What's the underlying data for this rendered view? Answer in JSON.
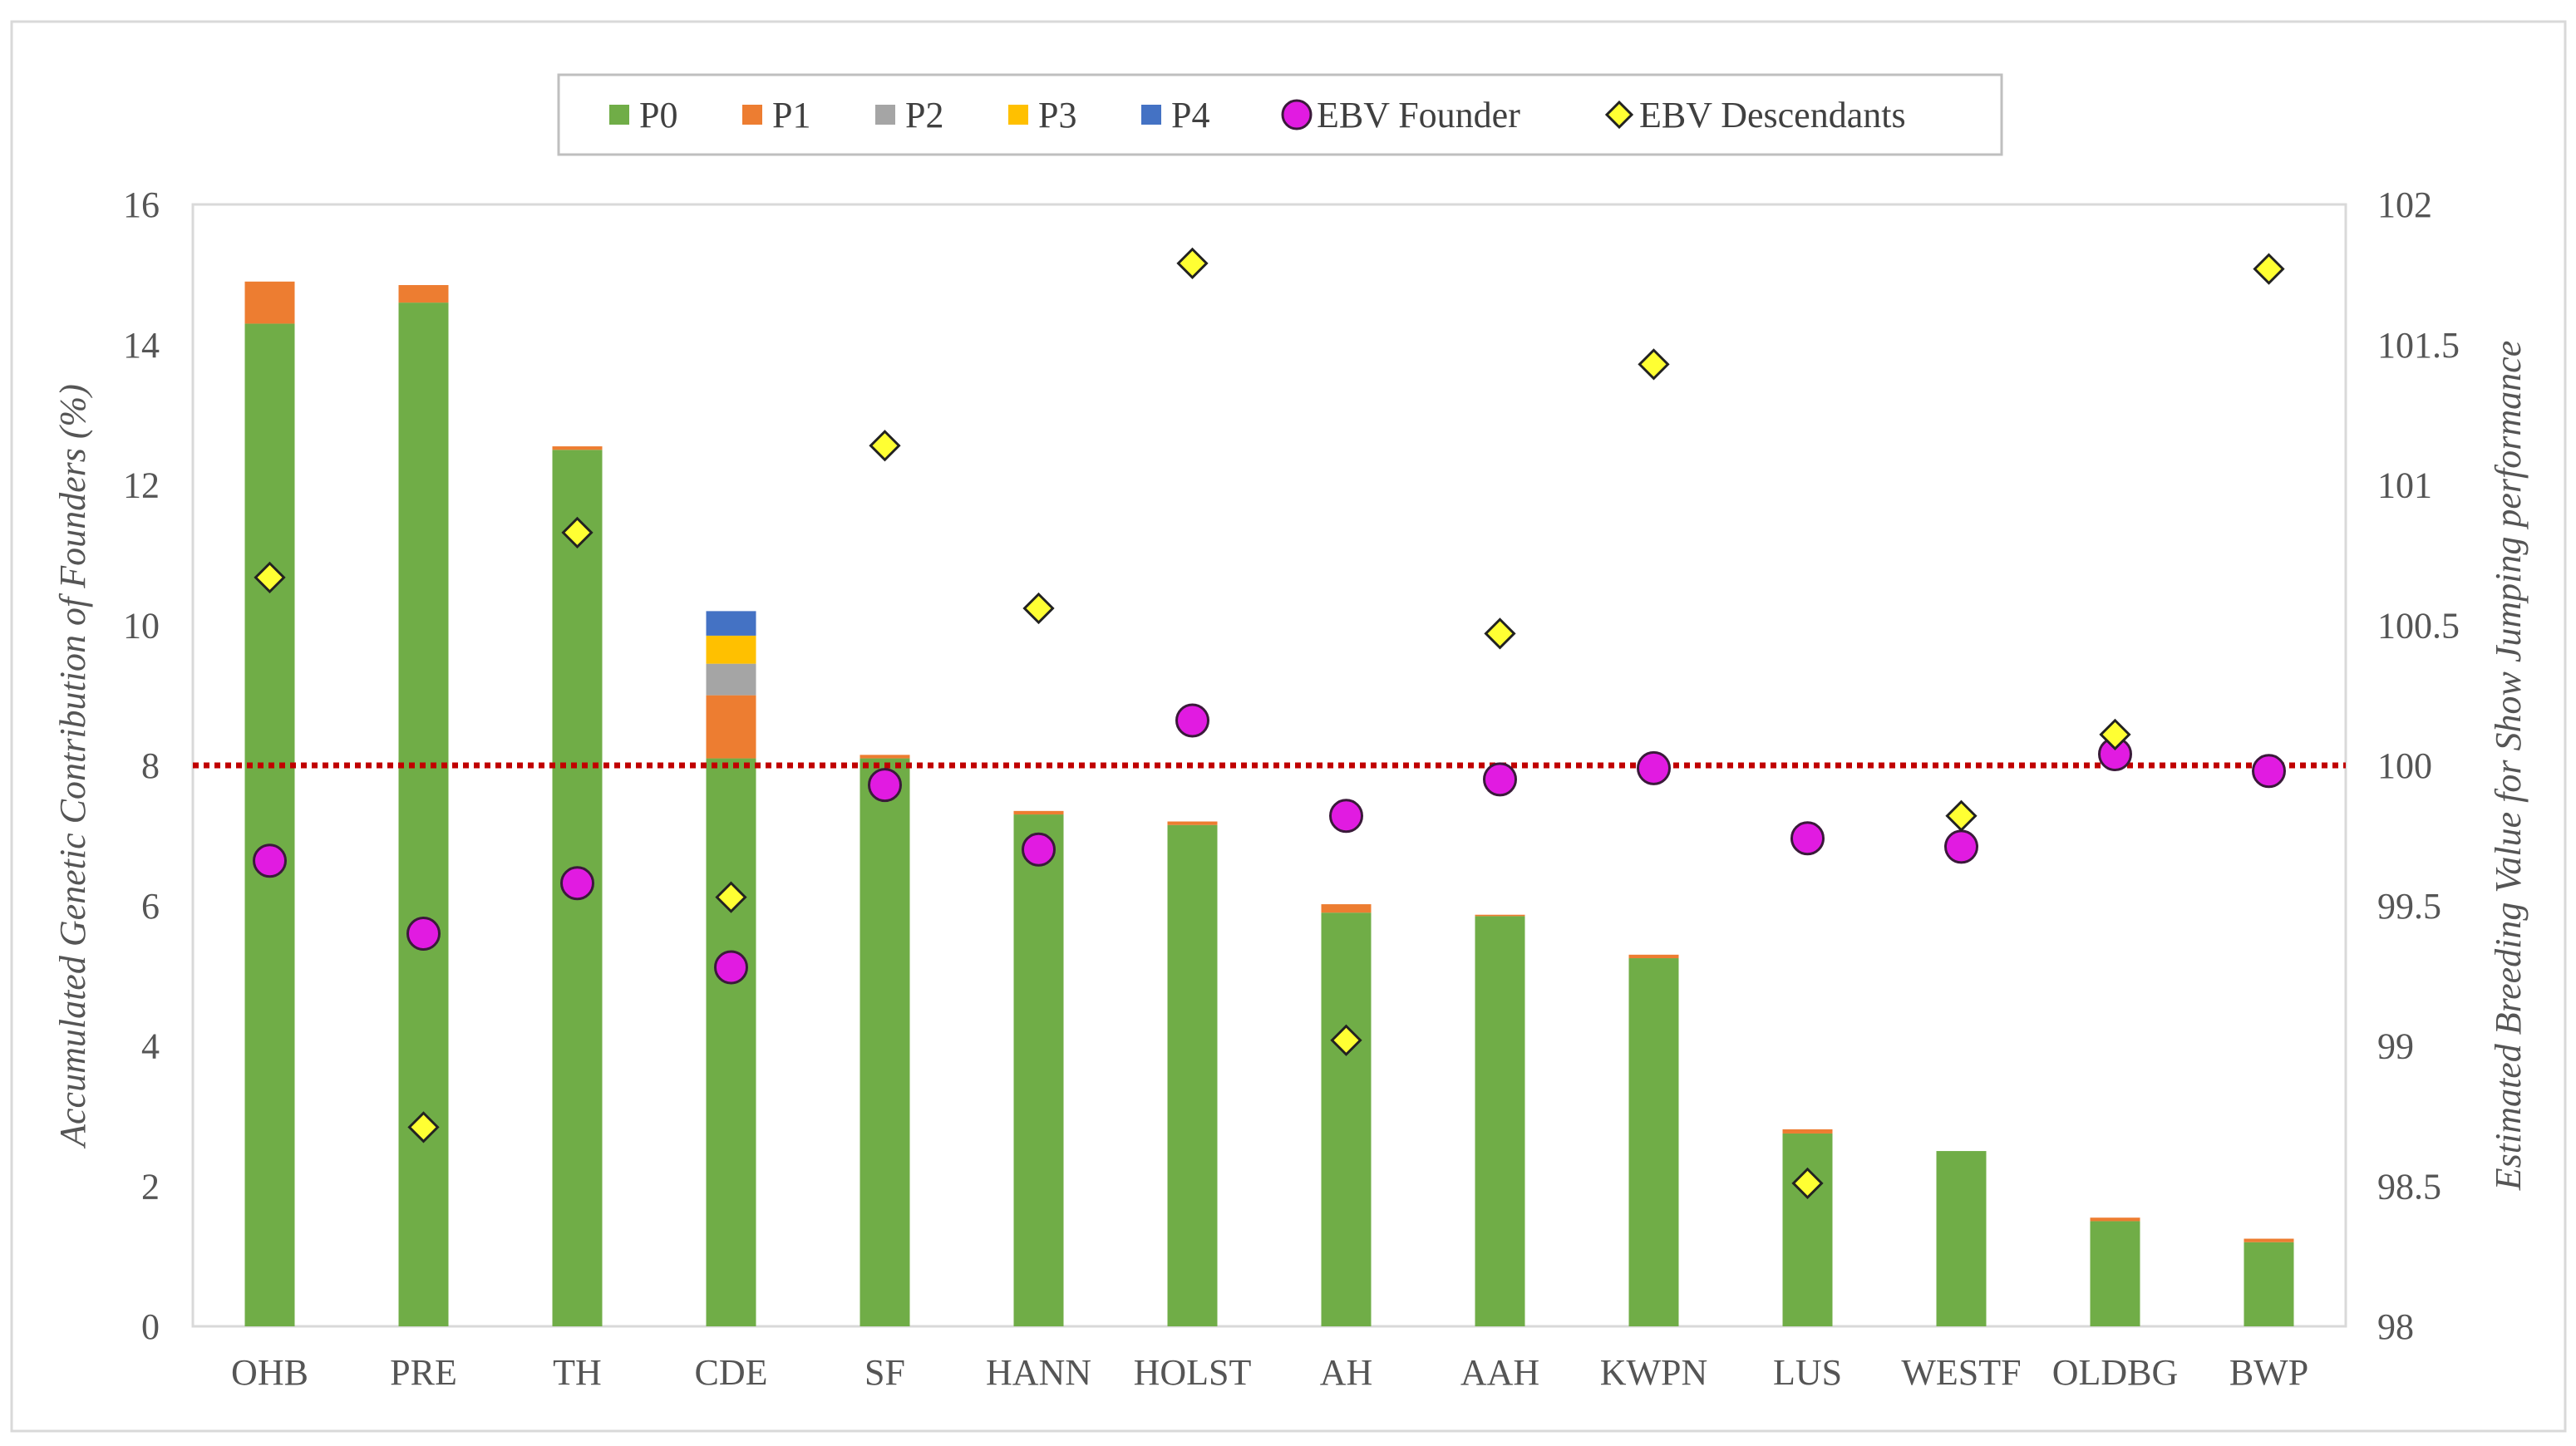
{
  "chart_data": {
    "type": "bar",
    "subtype": "stacked-bar-with-scatter-secondary-axis",
    "title": "",
    "categories": [
      "OHB",
      "PRE",
      "TH",
      "CDE",
      "SF",
      "HANN",
      "HOLST",
      "AH",
      "AAH",
      "KWPN",
      "LUS",
      "WESTF",
      "OLDBG",
      "BWP"
    ],
    "ylabel": "Accumulated Genetic Contribution of Founders (%)",
    "ylim": [
      0,
      16
    ],
    "yticks": [
      "0",
      "2",
      "4",
      "6",
      "8",
      "10",
      "12",
      "14",
      "16"
    ],
    "y2label": "Estimated Breeding Value for Show Jumping performance",
    "y2lim": [
      98,
      102
    ],
    "y2ticks": [
      "98",
      "98.5",
      "99",
      "99.5",
      "100",
      "100.5",
      "101",
      "101.5",
      "102"
    ],
    "series": [
      {
        "name": "P0",
        "kind": "bar",
        "axis": "left",
        "color": "#70AD47",
        "values": [
          14.3,
          14.6,
          12.5,
          8.1,
          8.1,
          7.3,
          7.15,
          5.9,
          5.85,
          5.25,
          2.75,
          2.5,
          1.5,
          1.2
        ]
      },
      {
        "name": "P1",
        "kind": "bar",
        "axis": "left",
        "color": "#ED7D31",
        "values": [
          0.6,
          0.25,
          0.05,
          0.9,
          0.05,
          0.05,
          0.05,
          0.12,
          0.02,
          0.05,
          0.06,
          0.0,
          0.05,
          0.05
        ]
      },
      {
        "name": "P2",
        "kind": "bar",
        "axis": "left",
        "color": "#A5A5A5",
        "values": [
          0,
          0,
          0,
          0.45,
          0,
          0,
          0,
          0,
          0,
          0,
          0,
          0,
          0,
          0
        ]
      },
      {
        "name": "P3",
        "kind": "bar",
        "axis": "left",
        "color": "#FFC000",
        "values": [
          0,
          0,
          0,
          0.4,
          0,
          0,
          0,
          0,
          0,
          0,
          0,
          0,
          0,
          0
        ]
      },
      {
        "name": "P4",
        "kind": "bar",
        "axis": "left",
        "color": "#4472C4",
        "values": [
          0,
          0,
          0,
          0.35,
          0,
          0,
          0,
          0,
          0,
          0,
          0,
          0,
          0,
          0
        ]
      },
      {
        "name": "EBV Founder",
        "kind": "scatter",
        "axis": "right",
        "marker": "circle",
        "color": "#E11BE1",
        "values": [
          99.66,
          99.4,
          99.58,
          99.28,
          99.93,
          99.7,
          100.16,
          99.82,
          99.95,
          99.99,
          99.74,
          99.71,
          100.04,
          99.98
        ]
      },
      {
        "name": "EBV Descendants",
        "kind": "scatter",
        "axis": "right",
        "marker": "diamond",
        "color": "#FFFF33",
        "values": [
          100.67,
          98.71,
          100.83,
          99.53,
          101.14,
          100.56,
          101.79,
          99.02,
          100.47,
          101.43,
          98.51,
          99.82,
          100.11,
          101.77
        ]
      }
    ],
    "reference_line": {
      "axis": "right",
      "value": 100,
      "style": "dotted",
      "color": "#C00000"
    },
    "legend": {
      "position": "top-center"
    },
    "grid": false
  }
}
